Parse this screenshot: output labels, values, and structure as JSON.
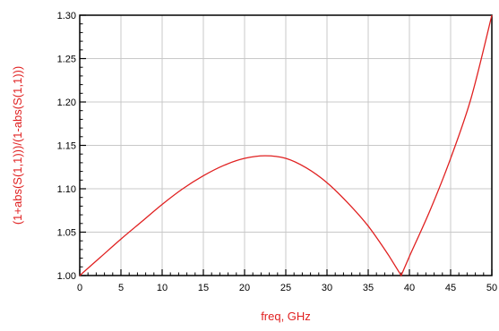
{
  "chart_data": {
    "type": "line",
    "xlabel": "freq, GHz",
    "ylabel": "(1+abs(S(1,1)))/(1-abs(S(1,1)))",
    "xlim": [
      0,
      50
    ],
    "ylim": [
      1.0,
      1.3
    ],
    "xticks": [
      "0",
      "5",
      "10",
      "15",
      "20",
      "25",
      "30",
      "35",
      "40",
      "45",
      "50"
    ],
    "yticks": [
      "1.00",
      "1.05",
      "1.10",
      "1.15",
      "1.20",
      "1.25",
      "1.30"
    ],
    "grid": true,
    "colors": {
      "series": "#e02020",
      "grid": "#c8c8c8",
      "axis_text": "#e02020"
    },
    "series": [
      {
        "x": [
          0,
          2.5,
          5,
          7.5,
          10,
          12.5,
          15,
          17.5,
          20,
          22.5,
          25,
          27.5,
          30,
          32.5,
          35,
          37.5,
          39,
          40,
          42.5,
          45,
          47.5,
          50
        ],
        "y": [
          1.0,
          1.021,
          1.042,
          1.062,
          1.082,
          1.1,
          1.115,
          1.127,
          1.135,
          1.138,
          1.135,
          1.124,
          1.107,
          1.084,
          1.057,
          1.023,
          1.0,
          1.022,
          1.075,
          1.135,
          1.205,
          1.3
        ]
      }
    ]
  }
}
